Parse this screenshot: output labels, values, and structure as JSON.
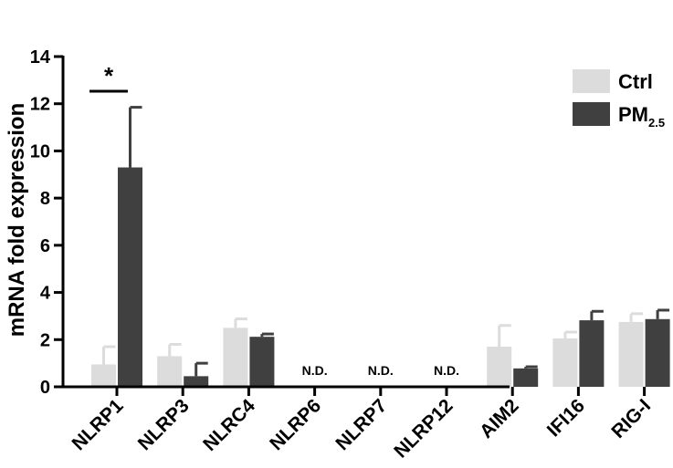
{
  "chart_data": {
    "type": "bar",
    "ylabel": "mRNA fold expression",
    "ylim": [
      0,
      14
    ],
    "yticks": [
      0,
      2,
      4,
      6,
      8,
      10,
      12,
      14
    ],
    "categories": [
      "NLRP1",
      "NLRP3",
      "NLRC4",
      "NLRP6",
      "NLRP7",
      "NLRP12",
      "AIM2",
      "IFI16",
      "RIG-I"
    ],
    "series": [
      {
        "name": "Ctrl",
        "color": "#dcdcdc",
        "values": [
          0.95,
          1.3,
          2.5,
          null,
          null,
          null,
          1.7,
          2.05,
          2.75
        ],
        "errors": [
          0.75,
          0.5,
          0.38,
          null,
          null,
          null,
          0.9,
          0.27,
          0.35
        ]
      },
      {
        "name": "PM2.5",
        "color": "#404040",
        "values": [
          9.3,
          0.45,
          2.12,
          null,
          null,
          null,
          0.78,
          2.82,
          2.87
        ],
        "errors": [
          2.55,
          0.55,
          0.12,
          null,
          null,
          null,
          0.07,
          0.38,
          0.38
        ]
      }
    ],
    "legend": {
      "position": "top-right",
      "items": [
        {
          "label": "Ctrl",
          "color": "#dcdcdc"
        },
        {
          "label": "PM",
          "subscript": "2.5",
          "color": "#404040"
        }
      ]
    },
    "annotations": {
      "not_detected_label": "N.D.",
      "not_detected_categories": [
        "NLRP6",
        "NLRP7",
        "NLRP12"
      ],
      "significance": {
        "category": "NLRP1",
        "label": "*"
      }
    }
  }
}
